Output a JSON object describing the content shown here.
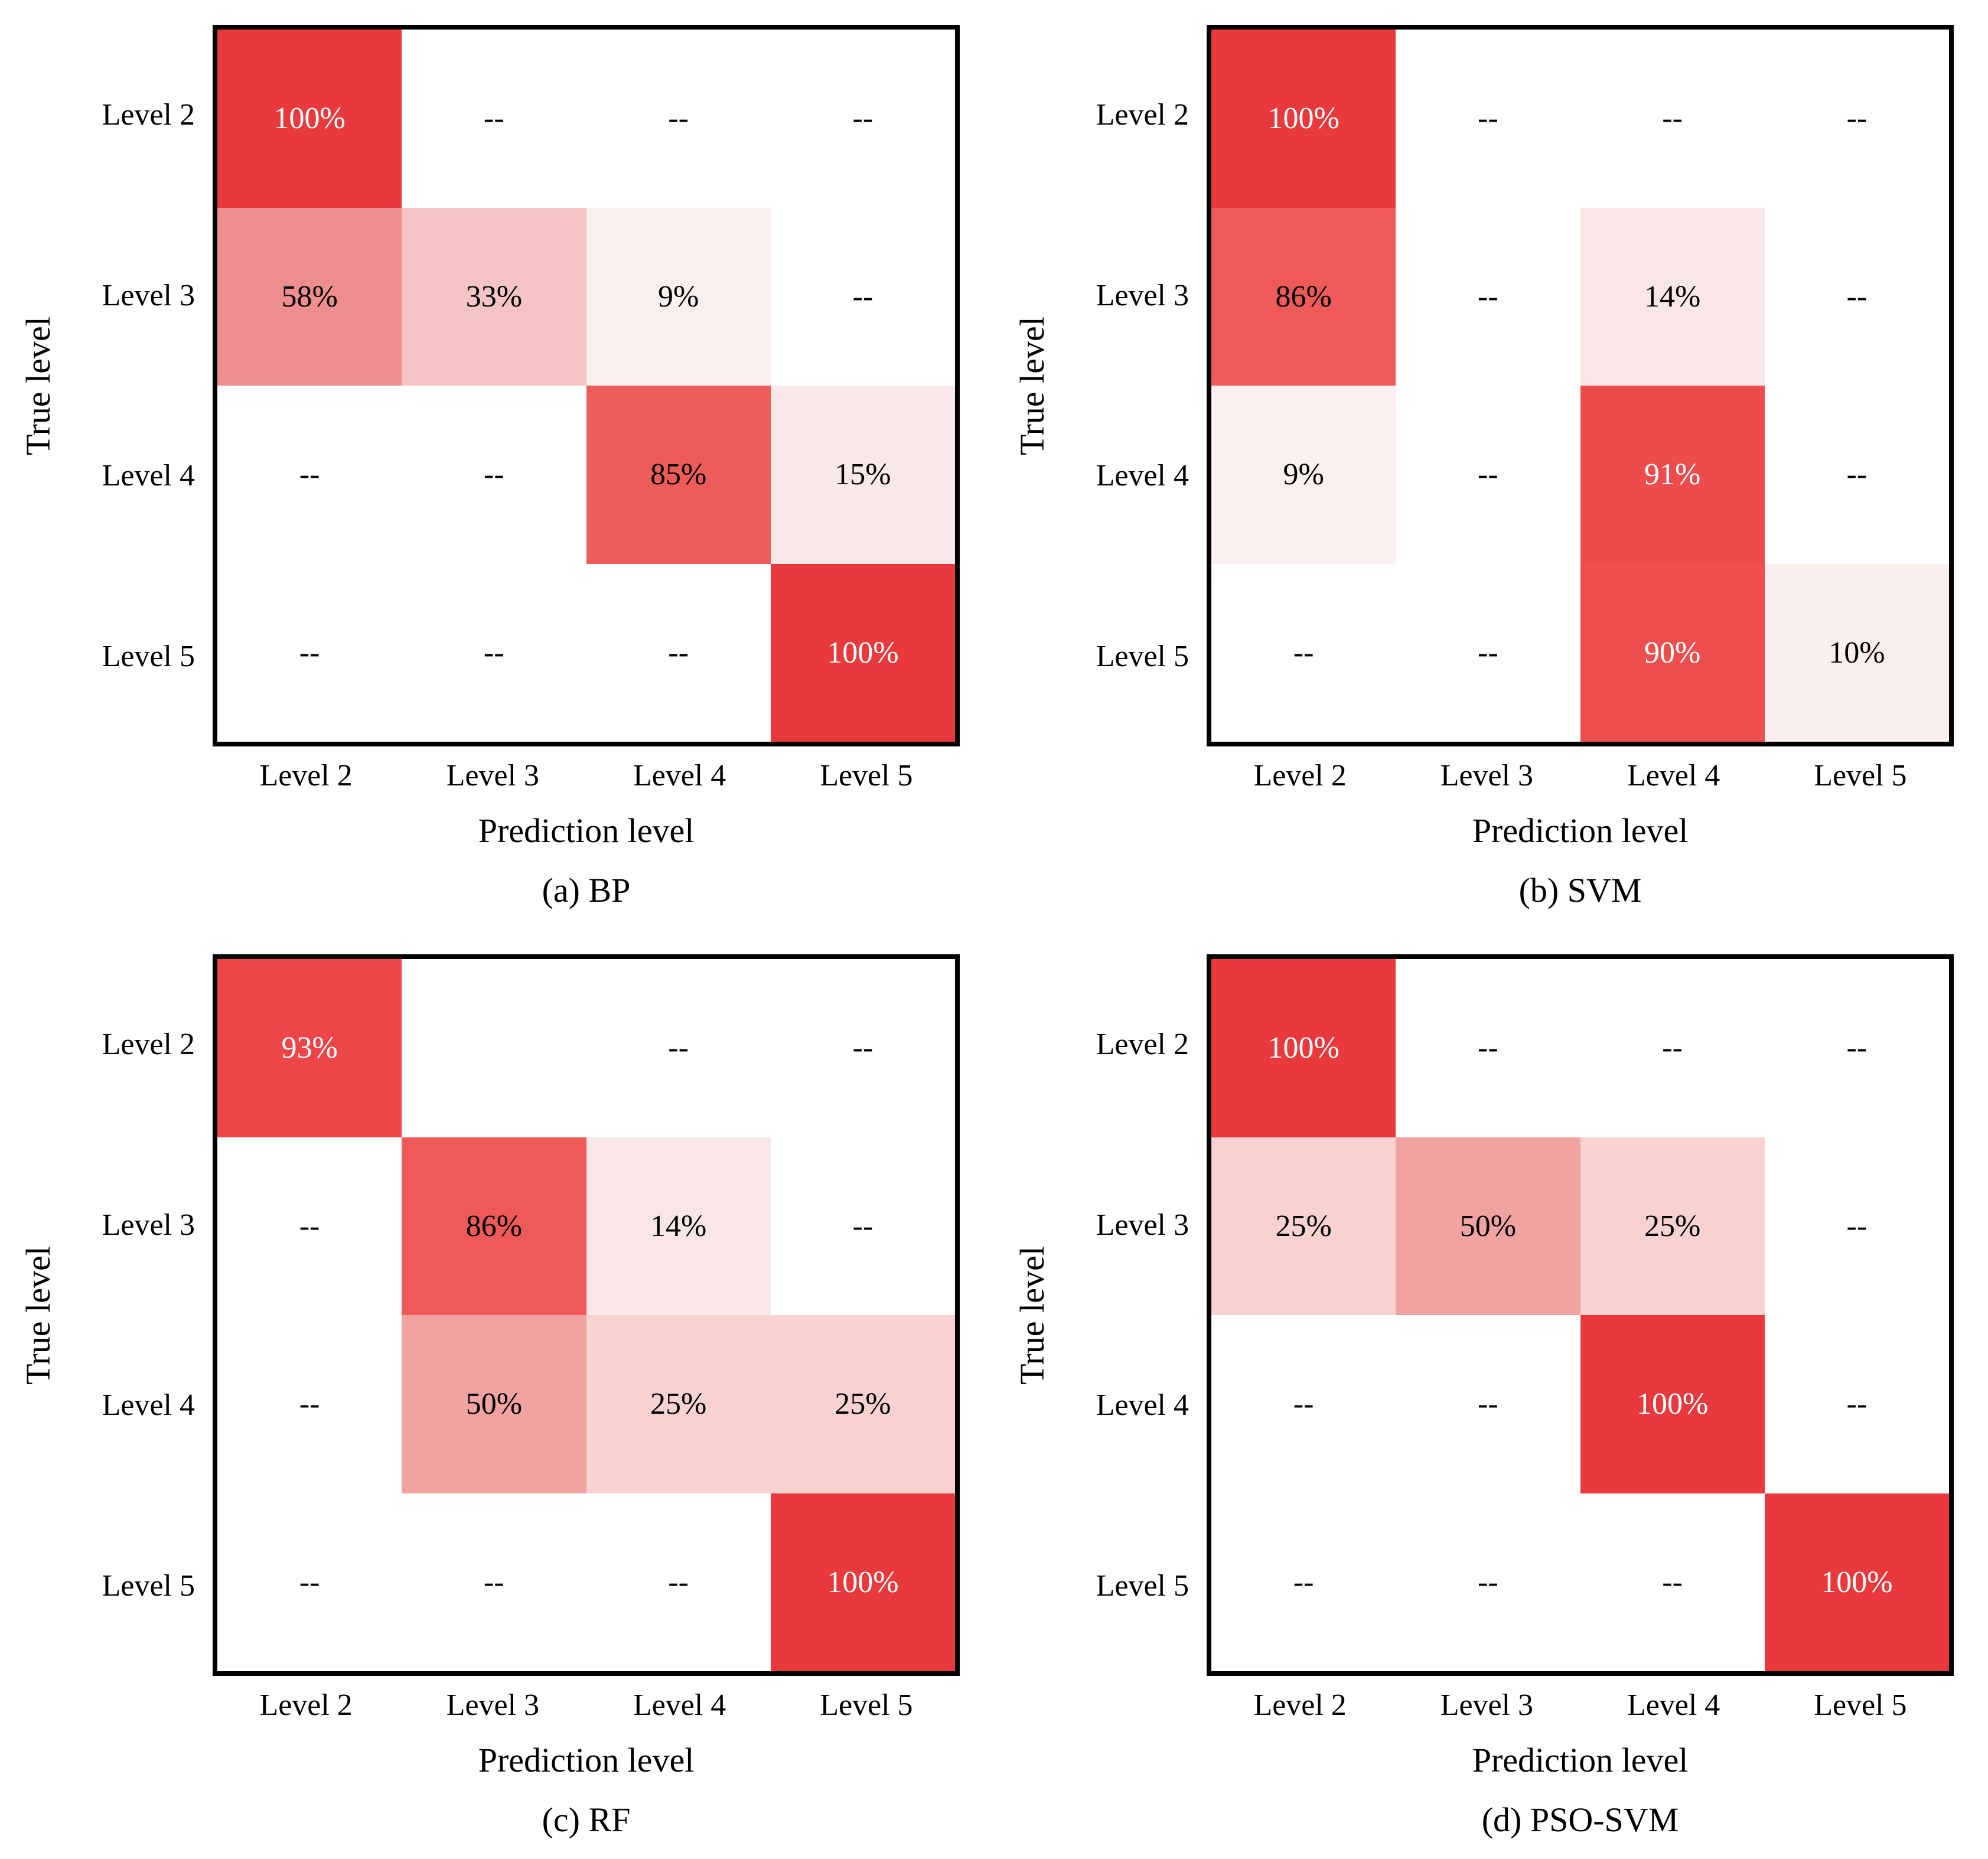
{
  "figure": {
    "background": "#ffffff",
    "border_color": "#000000",
    "accent_red": "#E83A3D",
    "text_dark": "#000000",
    "text_light": "#FFFFFF",
    "dash": "--"
  },
  "chart_data": [
    {
      "type": "heatmap",
      "title": "(a) BP",
      "xlabel": "Prediction level",
      "ylabel": "True level",
      "rows": [
        "Level 2",
        "Level 3",
        "Level 4",
        "Level 5"
      ],
      "cols": [
        "Level 2",
        "Level 3",
        "Level 4",
        "Level 5"
      ],
      "cells": [
        [
          {
            "t": "100%",
            "v": 100,
            "bg": "#E83A3D",
            "fg": "#FFFFFF"
          },
          {
            "t": "--",
            "v": null,
            "bg": "#FFFFFF",
            "fg": "#000000"
          },
          {
            "t": "--",
            "v": null,
            "bg": "#FFFFFF",
            "fg": "#000000"
          },
          {
            "t": "--",
            "v": null,
            "bg": "#FFFFFF",
            "fg": "#000000"
          }
        ],
        [
          {
            "t": "58%",
            "v": 58,
            "bg": "#EF8E8E",
            "fg": "#000000"
          },
          {
            "t": "33%",
            "v": 33,
            "bg": "#F5C5C5",
            "fg": "#000000"
          },
          {
            "t": "9%",
            "v": 9,
            "bg": "#FBF0F0",
            "fg": "#000000"
          },
          {
            "t": "--",
            "v": null,
            "bg": "#FFFFFF",
            "fg": "#000000"
          }
        ],
        [
          {
            "t": "--",
            "v": null,
            "bg": "#FFFFFF",
            "fg": "#000000"
          },
          {
            "t": "--",
            "v": null,
            "bg": "#FFFFFF",
            "fg": "#000000"
          },
          {
            "t": "85%",
            "v": 85,
            "bg": "#EE5C5A",
            "fg": "#000000"
          },
          {
            "t": "15%",
            "v": 15,
            "bg": "#F9E8E8",
            "fg": "#000000"
          }
        ],
        [
          {
            "t": "--",
            "v": null,
            "bg": "#FFFFFF",
            "fg": "#000000"
          },
          {
            "t": "--",
            "v": null,
            "bg": "#FFFFFF",
            "fg": "#000000"
          },
          {
            "t": "--",
            "v": null,
            "bg": "#FFFFFF",
            "fg": "#000000"
          },
          {
            "t": "100%",
            "v": 100,
            "bg": "#E83A3D",
            "fg": "#FFFFFF"
          }
        ]
      ]
    },
    {
      "type": "heatmap",
      "title": "(b) SVM",
      "xlabel": "Prediction level",
      "ylabel": "True level",
      "rows": [
        "Level 2",
        "Level 3",
        "Level 4",
        "Level 5"
      ],
      "cols": [
        "Level 2",
        "Level 3",
        "Level 4",
        "Level 5"
      ],
      "cells": [
        [
          {
            "t": "100%",
            "v": 100,
            "bg": "#E83A3D",
            "fg": "#FFFFFF"
          },
          {
            "t": "--",
            "v": null,
            "bg": "#FFFFFF",
            "fg": "#000000"
          },
          {
            "t": "--",
            "v": null,
            "bg": "#FFFFFF",
            "fg": "#000000"
          },
          {
            "t": "--",
            "v": null,
            "bg": "#FFFFFF",
            "fg": "#000000"
          }
        ],
        [
          {
            "t": "86%",
            "v": 86,
            "bg": "#EE5A58",
            "fg": "#000000"
          },
          {
            "t": "--",
            "v": null,
            "bg": "#FFFFFF",
            "fg": "#000000"
          },
          {
            "t": "14%",
            "v": 14,
            "bg": "#F9E7E7",
            "fg": "#000000"
          },
          {
            "t": "--",
            "v": null,
            "bg": "#FFFFFF",
            "fg": "#000000"
          }
        ],
        [
          {
            "t": "9%",
            "v": 9,
            "bg": "#FBF0F0",
            "fg": "#000000"
          },
          {
            "t": "--",
            "v": null,
            "bg": "#FFFFFF",
            "fg": "#000000"
          },
          {
            "t": "91%",
            "v": 91,
            "bg": "#ED4C4C",
            "fg": "#FFFFFF"
          },
          {
            "t": "--",
            "v": null,
            "bg": "#FFFFFF",
            "fg": "#000000"
          }
        ],
        [
          {
            "t": "--",
            "v": null,
            "bg": "#FFFFFF",
            "fg": "#000000"
          },
          {
            "t": "--",
            "v": null,
            "bg": "#FFFFFF",
            "fg": "#000000"
          },
          {
            "t": "90%",
            "v": 90,
            "bg": "#ED4E4E",
            "fg": "#FFFFFF"
          },
          {
            "t": "10%",
            "v": 10,
            "bg": "#FBEFEE",
            "fg": "#000000"
          }
        ]
      ]
    },
    {
      "type": "heatmap",
      "title": "(c) RF",
      "xlabel": "Prediction level",
      "ylabel": "True level",
      "rows": [
        "Level 2",
        "Level 3",
        "Level 4",
        "Level 5"
      ],
      "cols": [
        "Level 2",
        "Level 3",
        "Level 4",
        "Level 5"
      ],
      "cells": [
        [
          {
            "t": "93%",
            "v": 93,
            "bg": "#EC4649",
            "fg": "#FFFFFF"
          },
          {
            "t": "",
            "v": null,
            "bg": "#FFFFFF",
            "fg": "#000000"
          },
          {
            "t": "--",
            "v": null,
            "bg": "#FFFFFF",
            "fg": "#000000"
          },
          {
            "t": "--",
            "v": null,
            "bg": "#FFFFFF",
            "fg": "#000000"
          }
        ],
        [
          {
            "t": "--",
            "v": null,
            "bg": "#FFFFFF",
            "fg": "#000000"
          },
          {
            "t": "86%",
            "v": 86,
            "bg": "#EE5A58",
            "fg": "#000000"
          },
          {
            "t": "14%",
            "v": 14,
            "bg": "#F9E7E7",
            "fg": "#000000"
          },
          {
            "t": "--",
            "v": null,
            "bg": "#FFFFFF",
            "fg": "#000000"
          }
        ],
        [
          {
            "t": "--",
            "v": null,
            "bg": "#FFFFFF",
            "fg": "#000000"
          },
          {
            "t": "50%",
            "v": 50,
            "bg": "#F1A3A2",
            "fg": "#000000"
          },
          {
            "t": "25%",
            "v": 25,
            "bg": "#F7D2D1",
            "fg": "#000000"
          },
          {
            "t": "25%",
            "v": 25,
            "bg": "#F7D2D1",
            "fg": "#000000"
          }
        ],
        [
          {
            "t": "--",
            "v": null,
            "bg": "#FFFFFF",
            "fg": "#000000"
          },
          {
            "t": "--",
            "v": null,
            "bg": "#FFFFFF",
            "fg": "#000000"
          },
          {
            "t": "--",
            "v": null,
            "bg": "#FFFFFF",
            "fg": "#000000"
          },
          {
            "t": "100%",
            "v": 100,
            "bg": "#E83A3D",
            "fg": "#FFFFFF"
          }
        ]
      ]
    },
    {
      "type": "heatmap",
      "title": "(d) PSO-SVM",
      "xlabel": "Prediction level",
      "ylabel": "True level",
      "rows": [
        "Level 2",
        "Level 3",
        "Level 4",
        "Level 5"
      ],
      "cols": [
        "Level 2",
        "Level 3",
        "Level 4",
        "Level 5"
      ],
      "cells": [
        [
          {
            "t": "100%",
            "v": 100,
            "bg": "#E83A3D",
            "fg": "#FFFFFF"
          },
          {
            "t": "--",
            "v": null,
            "bg": "#FFFFFF",
            "fg": "#000000"
          },
          {
            "t": "--",
            "v": null,
            "bg": "#FFFFFF",
            "fg": "#000000"
          },
          {
            "t": "--",
            "v": null,
            "bg": "#FFFFFF",
            "fg": "#000000"
          }
        ],
        [
          {
            "t": "25%",
            "v": 25,
            "bg": "#F7D2D1",
            "fg": "#000000"
          },
          {
            "t": "50%",
            "v": 50,
            "bg": "#F1A3A2",
            "fg": "#000000"
          },
          {
            "t": "25%",
            "v": 25,
            "bg": "#F7D2D1",
            "fg": "#000000"
          },
          {
            "t": "--",
            "v": null,
            "bg": "#FFFFFF",
            "fg": "#000000"
          }
        ],
        [
          {
            "t": "--",
            "v": null,
            "bg": "#FFFFFF",
            "fg": "#000000"
          },
          {
            "t": "--",
            "v": null,
            "bg": "#FFFFFF",
            "fg": "#000000"
          },
          {
            "t": "100%",
            "v": 100,
            "bg": "#E83A3D",
            "fg": "#FFFFFF"
          },
          {
            "t": "--",
            "v": null,
            "bg": "#FFFFFF",
            "fg": "#000000"
          }
        ],
        [
          {
            "t": "--",
            "v": null,
            "bg": "#FFFFFF",
            "fg": "#000000"
          },
          {
            "t": "--",
            "v": null,
            "bg": "#FFFFFF",
            "fg": "#000000"
          },
          {
            "t": "--",
            "v": null,
            "bg": "#FFFFFF",
            "fg": "#000000"
          },
          {
            "t": "100%",
            "v": 100,
            "bg": "#E83A3D",
            "fg": "#FFFFFF"
          }
        ]
      ]
    }
  ]
}
